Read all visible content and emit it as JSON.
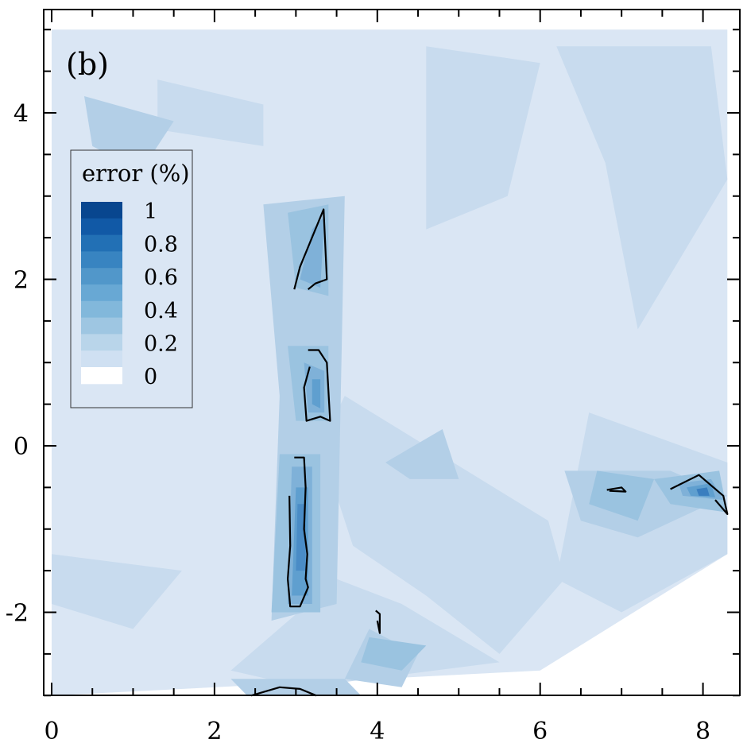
{
  "chart_data": {
    "type": "heatmap",
    "panel_label": "(b)",
    "title": "",
    "xlabel": "",
    "ylabel": "",
    "xlim": [
      -0.1,
      8.45
    ],
    "ylim": [
      -3.15,
      5.1
    ],
    "x_ticks": [
      0,
      2,
      4,
      6,
      8
    ],
    "y_ticks": [
      -2,
      0,
      2,
      4
    ],
    "x_minor_step": 0.5,
    "y_minor_step": 0.5,
    "grid": false,
    "legend": {
      "title": "error (%)",
      "placement": "upper-left",
      "labels": [
        "1",
        "0.8",
        "0.6",
        "0.4",
        "0.2",
        "0"
      ],
      "levels": [
        1.0,
        0.9,
        0.8,
        0.7,
        0.6,
        0.5,
        0.4,
        0.3,
        0.2,
        0.1,
        0.0
      ],
      "colors": [
        "#08468f",
        "#1159a6",
        "#2270b5",
        "#3884c1",
        "#5197ca",
        "#68a8d4",
        "#82b8db",
        "#9ec6e2",
        "#b9d5ea",
        "#cfe0f2",
        "#ffffff"
      ]
    },
    "background_level": 0.1,
    "background_color": "#dae6f4",
    "domain": [
      [
        0,
        5
      ],
      [
        8.3,
        5
      ],
      [
        8.3,
        -1.3
      ],
      [
        6,
        -2.7
      ],
      [
        0,
        -3
      ]
    ],
    "contour_regions": [
      {
        "level": 0.2,
        "color": "#c8dbee",
        "points": [
          [
            1.3,
            4.4
          ],
          [
            2.6,
            4.1
          ],
          [
            2.6,
            3.6
          ],
          [
            1.3,
            3.8
          ]
        ]
      },
      {
        "level": 0.2,
        "color": "#c8dbee",
        "points": [
          [
            4.6,
            4.8
          ],
          [
            6.0,
            4.6
          ],
          [
            5.6,
            3.0
          ],
          [
            4.6,
            2.6
          ]
        ]
      },
      {
        "level": 0.2,
        "color": "#c8dbee",
        "points": [
          [
            6.2,
            4.8
          ],
          [
            8.1,
            4.8
          ],
          [
            8.3,
            3.2
          ],
          [
            7.2,
            1.4
          ],
          [
            6.8,
            3.4
          ]
        ]
      },
      {
        "level": 0.2,
        "color": "#c8dbee",
        "points": [
          [
            3.6,
            0.6
          ],
          [
            3.3,
            0.0
          ],
          [
            3.7,
            -1.2
          ],
          [
            4.6,
            -1.8
          ],
          [
            5.5,
            -2.5
          ],
          [
            6.3,
            -1.6
          ],
          [
            6.1,
            -0.9
          ]
        ]
      },
      {
        "level": 0.2,
        "color": "#c8dbee",
        "points": [
          [
            6.6,
            0.4
          ],
          [
            8.3,
            -0.2
          ],
          [
            8.3,
            -1.3
          ],
          [
            7.0,
            -2.0
          ],
          [
            6.2,
            -1.6
          ]
        ]
      },
      {
        "level": 0.2,
        "color": "#c8dbee",
        "points": [
          [
            3.5,
            -1.6
          ],
          [
            4.3,
            -1.9
          ],
          [
            5.5,
            -2.6
          ],
          [
            3.1,
            -2.9
          ],
          [
            2.2,
            -2.7
          ]
        ]
      },
      {
        "level": 0.2,
        "color": "#c8dbee",
        "points": [
          [
            0,
            -1.3
          ],
          [
            1.6,
            -1.5
          ],
          [
            1.0,
            -2.2
          ],
          [
            0,
            -1.9
          ]
        ]
      },
      {
        "level": 0.3,
        "color": "#b3cfe7",
        "points": [
          [
            2.6,
            2.9
          ],
          [
            3.6,
            3.0
          ],
          [
            3.5,
            -1.9
          ],
          [
            2.7,
            -2.1
          ],
          [
            2.8,
            0.6
          ]
        ]
      },
      {
        "level": 0.3,
        "color": "#b3cfe7",
        "points": [
          [
            3.9,
            -2.2
          ],
          [
            4.5,
            -2.5
          ],
          [
            4.3,
            -2.9
          ],
          [
            3.6,
            -2.8
          ]
        ]
      },
      {
        "level": 0.3,
        "color": "#b3cfe7",
        "points": [
          [
            2.2,
            -2.8
          ],
          [
            3.6,
            -2.8
          ],
          [
            3.8,
            -3.0
          ],
          [
            2.4,
            -3.0
          ]
        ]
      },
      {
        "level": 0.3,
        "color": "#b3cfe7",
        "points": [
          [
            4.1,
            -0.2
          ],
          [
            4.8,
            0.2
          ],
          [
            5.0,
            -0.4
          ],
          [
            4.4,
            -0.4
          ]
        ]
      },
      {
        "level": 0.3,
        "color": "#b3cfe7",
        "points": [
          [
            6.3,
            -0.3
          ],
          [
            7.6,
            -0.3
          ],
          [
            8.3,
            -0.6
          ],
          [
            7.2,
            -1.1
          ],
          [
            6.5,
            -0.9
          ]
        ]
      },
      {
        "level": 0.3,
        "color": "#b3cfe7",
        "points": [
          [
            0.4,
            4.2
          ],
          [
            1.5,
            3.9
          ],
          [
            1.1,
            3.3
          ],
          [
            0.5,
            3.6
          ]
        ]
      },
      {
        "level": 0.4,
        "color": "#9ac3e0",
        "points": [
          [
            2.9,
            2.8
          ],
          [
            3.4,
            2.9
          ],
          [
            3.4,
            1.8
          ],
          [
            3.0,
            1.9
          ]
        ]
      },
      {
        "level": 0.4,
        "color": "#9ac3e0",
        "points": [
          [
            2.9,
            1.2
          ],
          [
            3.4,
            1.2
          ],
          [
            3.4,
            0.3
          ],
          [
            3.0,
            0.3
          ]
        ]
      },
      {
        "level": 0.4,
        "color": "#9ac3e0",
        "points": [
          [
            2.8,
            -0.1
          ],
          [
            3.3,
            -0.1
          ],
          [
            3.3,
            -2.0
          ],
          [
            2.7,
            -2.0
          ]
        ]
      },
      {
        "level": 0.4,
        "color": "#9ac3e0",
        "points": [
          [
            6.7,
            -0.3
          ],
          [
            7.4,
            -0.4
          ],
          [
            7.2,
            -0.9
          ],
          [
            6.6,
            -0.7
          ]
        ]
      },
      {
        "level": 0.4,
        "color": "#9ac3e0",
        "points": [
          [
            7.4,
            -0.4
          ],
          [
            8.2,
            -0.3
          ],
          [
            8.3,
            -0.8
          ],
          [
            7.6,
            -0.7
          ]
        ]
      },
      {
        "level": 0.4,
        "color": "#9ac3e0",
        "points": [
          [
            3.9,
            -2.3
          ],
          [
            4.6,
            -2.4
          ],
          [
            4.3,
            -2.7
          ],
          [
            3.8,
            -2.6
          ]
        ]
      },
      {
        "level": 0.5,
        "color": "#7fb1d8",
        "points": [
          [
            3.2,
            2.6
          ],
          [
            3.35,
            2.75
          ],
          [
            3.3,
            1.9
          ],
          [
            3.05,
            2.0
          ]
        ]
      },
      {
        "level": 0.5,
        "color": "#7fb1d8",
        "points": [
          [
            3.1,
            1.0
          ],
          [
            3.35,
            0.9
          ],
          [
            3.35,
            0.4
          ],
          [
            3.15,
            0.4
          ]
        ]
      },
      {
        "level": 0.5,
        "color": "#7fb1d8",
        "points": [
          [
            2.95,
            -0.25
          ],
          [
            3.2,
            -0.25
          ],
          [
            3.2,
            -1.9
          ],
          [
            2.9,
            -1.9
          ]
        ]
      },
      {
        "level": 0.5,
        "color": "#7fb1d8",
        "points": [
          [
            7.7,
            -0.45
          ],
          [
            8.1,
            -0.4
          ],
          [
            8.25,
            -0.65
          ],
          [
            7.75,
            -0.6
          ]
        ]
      },
      {
        "level": 0.6,
        "color": "#5f9fcf",
        "points": [
          [
            3.0,
            -0.5
          ],
          [
            3.15,
            -0.5
          ],
          [
            3.15,
            -1.8
          ],
          [
            2.95,
            -1.8
          ]
        ]
      },
      {
        "level": 0.6,
        "color": "#5f9fcf",
        "points": [
          [
            3.2,
            0.8
          ],
          [
            3.3,
            0.8
          ],
          [
            3.3,
            0.45
          ],
          [
            3.2,
            0.5
          ]
        ]
      },
      {
        "level": 0.6,
        "color": "#5f9fcf",
        "points": [
          [
            7.8,
            -0.5
          ],
          [
            8.1,
            -0.45
          ],
          [
            8.15,
            -0.62
          ],
          [
            7.85,
            -0.6
          ]
        ]
      },
      {
        "level": 0.7,
        "color": "#4a8cc6",
        "points": [
          [
            3.02,
            -0.7
          ],
          [
            3.12,
            -0.7
          ],
          [
            3.12,
            -1.5
          ],
          [
            3.0,
            -1.5
          ]
        ]
      },
      {
        "level": 0.8,
        "color": "#3a7ebf",
        "points": [
          [
            7.92,
            -0.52
          ],
          [
            8.05,
            -0.5
          ],
          [
            8.08,
            -0.6
          ],
          [
            7.95,
            -0.6
          ]
        ]
      }
    ],
    "outline_contours": [
      {
        "level": 0.5,
        "points": [
          [
            2.98,
            1.88
          ],
          [
            3.05,
            2.15
          ],
          [
            3.34,
            2.84
          ],
          [
            3.38,
            2.0
          ],
          [
            3.24,
            1.95
          ],
          [
            3.15,
            1.88
          ]
        ]
      },
      {
        "level": 0.5,
        "points": [
          [
            3.15,
            1.15
          ],
          [
            3.28,
            1.15
          ],
          [
            3.38,
            1.0
          ],
          [
            3.42,
            0.3
          ],
          [
            3.3,
            0.35
          ],
          [
            3.13,
            0.3
          ],
          [
            3.1,
            0.7
          ],
          [
            3.17,
            0.95
          ]
        ]
      },
      {
        "level": 0.5,
        "points": [
          [
            2.98,
            -0.14
          ],
          [
            3.1,
            -0.14
          ],
          [
            3.12,
            -0.5
          ],
          [
            3.1,
            -1.0
          ],
          [
            3.14,
            -1.3
          ],
          [
            3.12,
            -1.6
          ],
          [
            3.15,
            -1.7
          ],
          [
            3.05,
            -1.93
          ],
          [
            2.93,
            -1.93
          ],
          [
            2.9,
            -1.6
          ],
          [
            2.93,
            -1.2
          ],
          [
            2.92,
            -0.6
          ]
        ]
      },
      {
        "level": 0.5,
        "points": [
          [
            6.82,
            -0.53
          ],
          [
            7.0,
            -0.5
          ],
          [
            7.05,
            -0.55
          ],
          [
            6.85,
            -0.54
          ]
        ]
      },
      {
        "level": 0.5,
        "points": [
          [
            7.6,
            -0.52
          ],
          [
            7.95,
            -0.35
          ],
          [
            8.25,
            -0.6
          ],
          [
            8.3,
            -0.82
          ],
          [
            8.15,
            -0.65
          ]
        ]
      },
      {
        "level": 0.5,
        "points": [
          [
            3.98,
            -1.98
          ],
          [
            4.03,
            -2.02
          ],
          [
            4.03,
            -2.25
          ],
          [
            4.0,
            -2.1
          ]
        ]
      },
      {
        "level": 0.5,
        "points": [
          [
            2.45,
            -3.0
          ],
          [
            2.8,
            -2.9
          ],
          [
            3.05,
            -2.92
          ],
          [
            3.25,
            -3.0
          ]
        ]
      }
    ]
  }
}
